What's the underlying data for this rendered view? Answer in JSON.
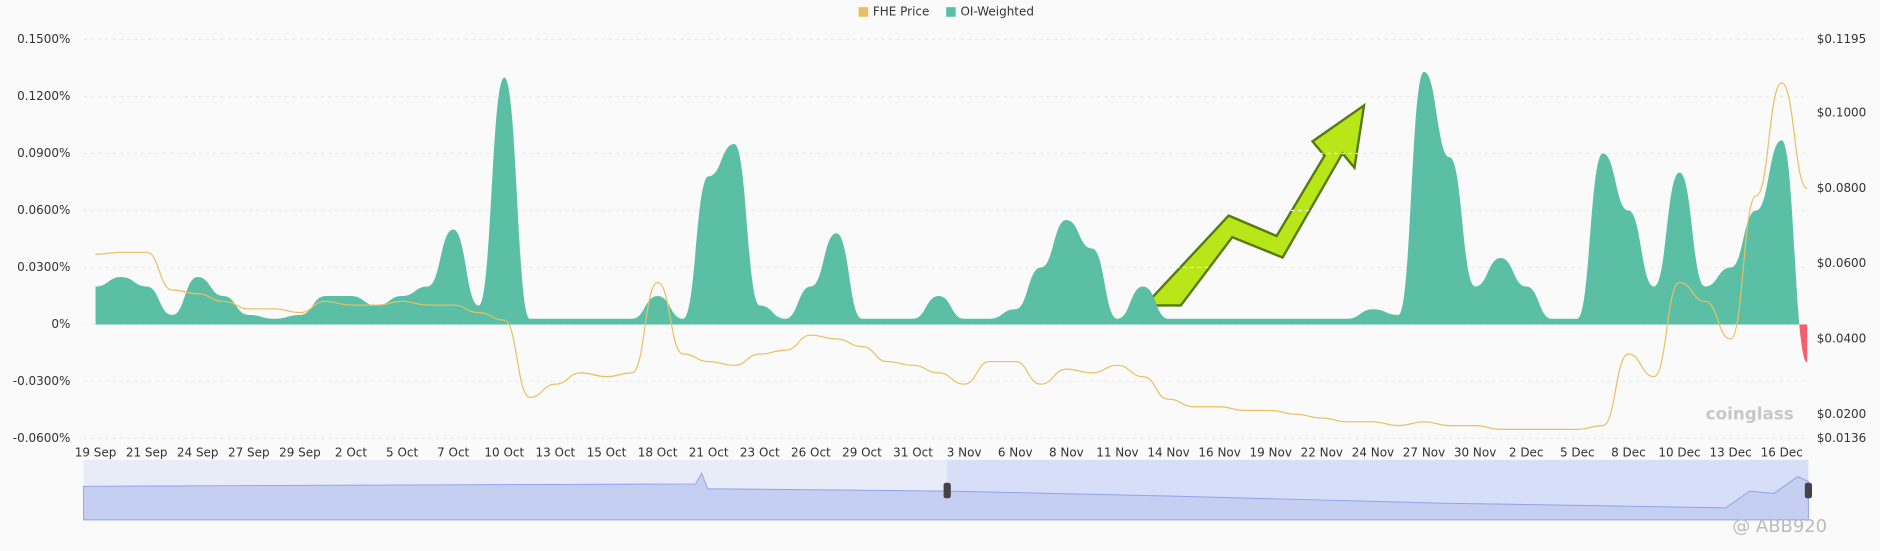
{
  "chart_data": {
    "type": "area-line",
    "categories": [
      "19 Sep",
      null,
      "21 Sep",
      null,
      "24 Sep",
      null,
      "27 Sep",
      null,
      "29 Sep",
      null,
      "2 Oct",
      null,
      "5 Oct",
      null,
      "7 Oct",
      null,
      "10 Oct",
      null,
      "13 Oct",
      null,
      "15 Oct",
      null,
      "18 Oct",
      null,
      "21 Oct",
      null,
      "23 Oct",
      null,
      "26 Oct",
      null,
      "29 Oct",
      null,
      "31 Oct",
      null,
      "3 Nov",
      null,
      "6 Nov",
      null,
      "8 Nov",
      null,
      "11 Nov",
      null,
      "14 Nov",
      null,
      "16 Nov",
      null,
      "19 Nov",
      null,
      "22 Nov",
      null,
      "24 Nov",
      null,
      "27 Nov",
      null,
      "30 Nov",
      null,
      "2 Dec",
      null,
      "5 Dec",
      null,
      "8 Dec",
      null,
      "10 Dec",
      null,
      "13 Dec",
      null,
      "16 Dec",
      null
    ],
    "series": [
      {
        "name": "OI-Weighted",
        "color": "#5bbfa6",
        "negative_color": "#f0606e",
        "values": [
          0.02,
          0.025,
          0.02,
          0.005,
          0.025,
          0.015,
          0.005,
          0.003,
          0.005,
          0.015,
          0.015,
          0.01,
          0.015,
          0.02,
          0.05,
          0.01,
          0.13,
          0.003,
          0.003,
          0.003,
          0.003,
          0.003,
          0.015,
          0.003,
          0.078,
          0.095,
          0.01,
          0.003,
          0.02,
          0.048,
          0.003,
          0.003,
          0.003,
          0.015,
          0.003,
          0.003,
          0.008,
          0.03,
          0.055,
          0.04,
          0.003,
          0.02,
          0.003,
          0.003,
          0.003,
          0.003,
          0.003,
          0.003,
          0.003,
          0.003,
          0.008,
          0.005,
          0.133,
          0.088,
          0.02,
          0.035,
          0.02,
          0.003,
          0.003,
          0.09,
          0.06,
          0.02,
          0.08,
          0.02,
          0.03,
          0.06,
          0.097,
          -0.02
        ]
      },
      {
        "name": "FHE Price",
        "color": "#e8c060",
        "axis": "y2",
        "values": [
          0.0625,
          0.063,
          0.063,
          0.053,
          0.052,
          0.05,
          0.048,
          0.048,
          0.047,
          0.05,
          0.049,
          0.049,
          0.05,
          0.049,
          0.049,
          0.047,
          0.045,
          0.0245,
          0.028,
          0.031,
          0.03,
          0.031,
          0.055,
          0.036,
          0.034,
          0.033,
          0.036,
          0.037,
          0.041,
          0.04,
          0.038,
          0.034,
          0.033,
          0.031,
          0.028,
          0.034,
          0.034,
          0.028,
          0.032,
          0.031,
          0.033,
          0.03,
          0.024,
          0.022,
          0.022,
          0.021,
          0.021,
          0.02,
          0.019,
          0.018,
          0.018,
          0.017,
          0.018,
          0.017,
          0.017,
          0.016,
          0.016,
          0.016,
          0.016,
          0.017,
          0.036,
          0.03,
          0.055,
          0.05,
          0.04,
          0.078,
          0.108,
          0.08
        ]
      }
    ],
    "ylim": [
      -0.06,
      0.15
    ],
    "yticks": [
      {
        "value": -0.06,
        "label": "-0.0600%"
      },
      {
        "value": -0.03,
        "label": "-0.0300%"
      },
      {
        "value": 0,
        "label": "0%"
      },
      {
        "value": 0.03,
        "label": "0.0300%"
      },
      {
        "value": 0.06,
        "label": "0.0600%"
      },
      {
        "value": 0.09,
        "label": "0.0900%"
      },
      {
        "value": 0.12,
        "label": "0.1200%"
      },
      {
        "value": 0.15,
        "label": "0.1500%"
      }
    ],
    "y2lim": [
      0.0136,
      0.1195
    ],
    "y2ticks": [
      {
        "value": 0.0136,
        "label": "$0.0136"
      },
      {
        "value": 0.02,
        "label": "$0.0200"
      },
      {
        "value": 0.04,
        "label": "$0.0400"
      },
      {
        "value": 0.06,
        "label": "$0.0600"
      },
      {
        "value": 0.08,
        "label": "$0.0800"
      },
      {
        "value": 0.1,
        "label": "$0.1000"
      },
      {
        "value": 0.1195,
        "label": "$0.1195"
      }
    ],
    "grid": true,
    "legend": "top",
    "watermark": "coinglass",
    "credit": "@ ABB920"
  }
}
